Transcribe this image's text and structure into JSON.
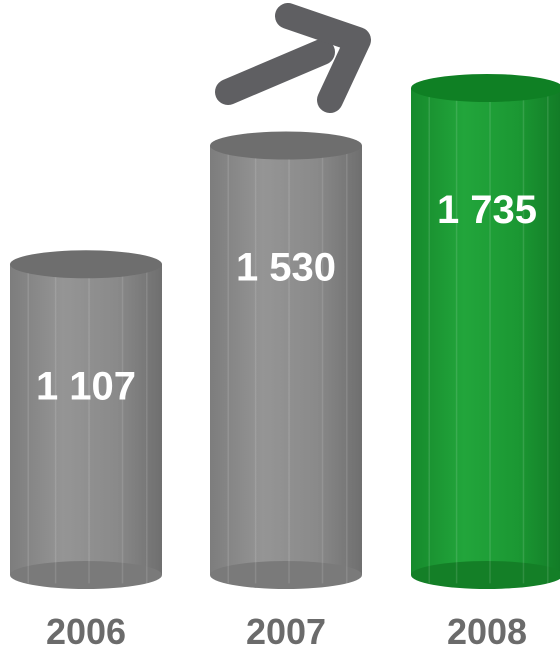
{
  "chart_data": {
    "type": "bar",
    "categories": [
      "2006",
      "2007",
      "2008"
    ],
    "values": [
      1107,
      1530,
      1735
    ],
    "value_labels": [
      "1 107",
      "1 530",
      "1 735"
    ],
    "ylim": [
      0,
      1735
    ],
    "grid": false,
    "legend": "none",
    "colors": {
      "bar_default": "#8a8a8a",
      "bar_highlight": "#1a9632",
      "arrow": "#5f5f62",
      "category_text": "#6b6b6b",
      "value_text": "#ffffff"
    },
    "highlight_index": 2,
    "annotation_icon": "trend-arrow-icon"
  }
}
